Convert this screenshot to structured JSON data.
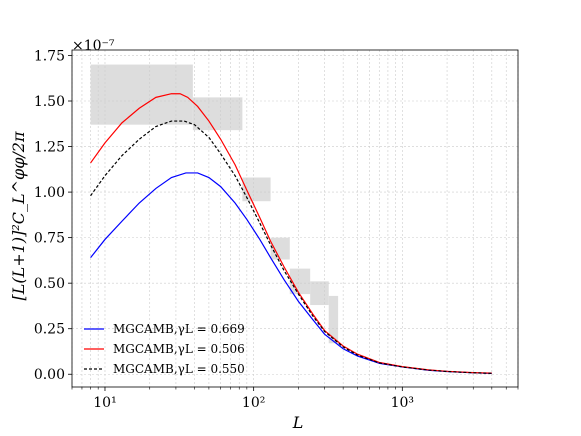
{
  "chart_data": {
    "type": "line",
    "xlabel": "L",
    "ylabel": "[L(L+1)]²C_L^φφ/2π",
    "y_multiplier": "×10⁻⁷",
    "x_scale": "log",
    "xlim": [
      6,
      6000
    ],
    "ylim": [
      -0.07,
      1.78
    ],
    "x_ticks": [
      10,
      100,
      1000
    ],
    "x_tick_labels": [
      "10¹",
      "10²",
      "10³"
    ],
    "y_ticks": [
      0.0,
      0.25,
      0.5,
      0.75,
      1.0,
      1.25,
      1.5,
      1.75
    ],
    "y_tick_labels": [
      "0.00",
      "0.25",
      "0.50",
      "0.75",
      "1.00",
      "1.25",
      "1.50",
      "1.75"
    ],
    "grid": true,
    "legend_position": "lower-left",
    "series": [
      {
        "name": "MGCAMB,γL = 0.669",
        "color": "#0000ff",
        "style": "solid",
        "x": [
          8,
          10,
          13,
          17,
          22,
          28,
          35,
          42,
          50,
          60,
          75,
          90,
          110,
          130,
          160,
          200,
          250,
          300,
          400,
          500,
          700,
          1000,
          1500,
          2000,
          3000,
          4000
        ],
        "y": [
          0.64,
          0.74,
          0.84,
          0.94,
          1.02,
          1.08,
          1.105,
          1.105,
          1.08,
          1.03,
          0.94,
          0.85,
          0.74,
          0.64,
          0.52,
          0.4,
          0.3,
          0.22,
          0.14,
          0.1,
          0.06,
          0.04,
          0.022,
          0.015,
          0.008,
          0.005
        ]
      },
      {
        "name": "MGCAMB,γL = 0.506",
        "color": "#ff0000",
        "style": "solid",
        "x": [
          8,
          10,
          13,
          17,
          22,
          28,
          32,
          36,
          42,
          50,
          60,
          75,
          90,
          110,
          130,
          160,
          200,
          250,
          300,
          400,
          500,
          700,
          1000,
          1500,
          2000,
          3000,
          4000
        ],
        "y": [
          1.16,
          1.27,
          1.38,
          1.46,
          1.52,
          1.54,
          1.54,
          1.52,
          1.47,
          1.39,
          1.29,
          1.15,
          1.01,
          0.86,
          0.73,
          0.59,
          0.45,
          0.33,
          0.24,
          0.155,
          0.11,
          0.065,
          0.042,
          0.024,
          0.016,
          0.009,
          0.006
        ]
      },
      {
        "name": "MGCAMB,γL = 0.550",
        "color": "#000000",
        "style": "dashed",
        "x": [
          8,
          10,
          13,
          17,
          22,
          28,
          34,
          40,
          50,
          60,
          75,
          90,
          110,
          130,
          160,
          200,
          250,
          300,
          400,
          500,
          700,
          1000,
          1500,
          2000,
          3000,
          4000
        ],
        "y": [
          0.98,
          1.09,
          1.2,
          1.29,
          1.36,
          1.39,
          1.39,
          1.37,
          1.3,
          1.21,
          1.09,
          0.97,
          0.83,
          0.71,
          0.57,
          0.44,
          0.32,
          0.235,
          0.15,
          0.105,
          0.062,
          0.04,
          0.023,
          0.015,
          0.008,
          0.005
        ]
      }
    ],
    "data_boxes": [
      {
        "x": [
          8,
          39
        ],
        "y": [
          1.37,
          1.7
        ]
      },
      {
        "x": [
          39,
          84
        ],
        "y": [
          1.34,
          1.52
        ]
      },
      {
        "x": [
          84,
          130
        ],
        "y": [
          0.95,
          1.08
        ]
      },
      {
        "x": [
          130,
          175
        ],
        "y": [
          0.63,
          0.75
        ]
      },
      {
        "x": [
          175,
          240
        ],
        "y": [
          0.44,
          0.58
        ]
      },
      {
        "x": [
          240,
          320
        ],
        "y": [
          0.38,
          0.51
        ]
      },
      {
        "x": [
          320,
          370
        ],
        "y": [
          0.17,
          0.43
        ]
      }
    ]
  }
}
